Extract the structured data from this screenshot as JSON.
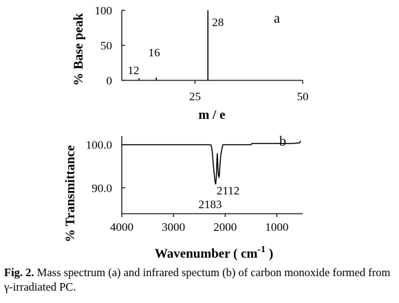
{
  "chart_data": [
    {
      "type": "bar",
      "panel_label": "a",
      "xlabel": "m / e",
      "ylabel": "% Base peak",
      "xlim": [
        8,
        50
      ],
      "ylim": [
        0,
        100
      ],
      "xticks": [
        25,
        50
      ],
      "yticks": [
        0,
        50,
        100
      ],
      "peaks": [
        {
          "x": 12,
          "y": 3,
          "label": "12"
        },
        {
          "x": 16,
          "y": 4,
          "label": "16"
        },
        {
          "x": 28,
          "y": 100,
          "label": "28"
        }
      ],
      "grid": false
    },
    {
      "type": "line",
      "panel_label": "b",
      "xlabel": "Wavenumber ( cm",
      "xlabel_sup": "-1",
      "xlabel_end": " )",
      "ylabel": "% Transmittance",
      "xlim": [
        4000,
        500
      ],
      "ylim": [
        84,
        102
      ],
      "xticks": [
        4000,
        3000,
        2000,
        1000
      ],
      "yticks": [
        90.0,
        100.0
      ],
      "ytick_labels": [
        "90.0",
        "100.0"
      ],
      "annotations": [
        {
          "x": 2183,
          "label": "2183"
        },
        {
          "x": 2112,
          "label": "2112"
        }
      ],
      "series": [
        {
          "x": [
            4000,
            2300,
            2270,
            2250,
            2230,
            2210,
            2195,
            2183,
            2170,
            2160,
            2150,
            2140,
            2130,
            2120,
            2112,
            2100,
            2085,
            2070,
            2055,
            2040,
            2000,
            1500,
            1480,
            1000,
            700,
            560,
            540
          ],
          "y": [
            100,
            100,
            99.9,
            98.5,
            95.5,
            93.0,
            91.5,
            90.8,
            92.5,
            96.5,
            98.0,
            94.5,
            93.0,
            92.5,
            92.8,
            95.5,
            97.5,
            98.5,
            99.5,
            100,
            100,
            100,
            100.3,
            100.3,
            100.3,
            100.4,
            100.9
          ]
        }
      ],
      "grid": false
    }
  ],
  "caption": {
    "label": "Fig. 2.",
    "text": " Mass spectrum (a) and infrared spectum (b) of carbon monoxide formed from γ-irradiated PC."
  }
}
